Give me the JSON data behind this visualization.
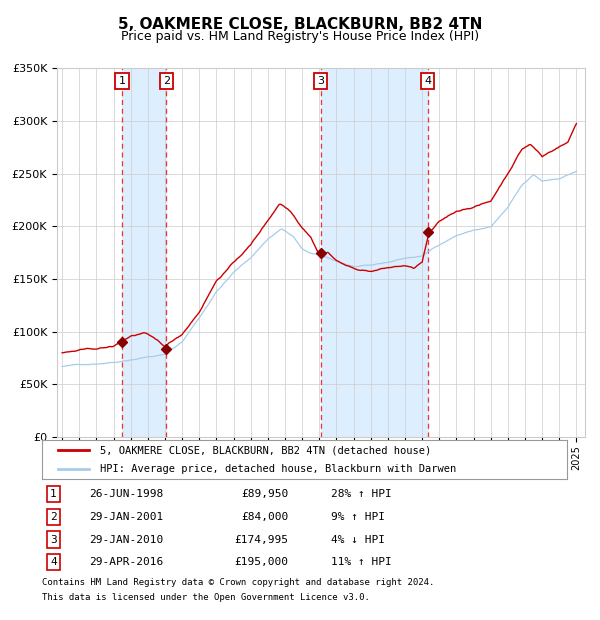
{
  "title": "5, OAKMERE CLOSE, BLACKBURN, BB2 4TN",
  "subtitle": "Price paid vs. HM Land Registry's House Price Index (HPI)",
  "sale_dates_decimal": [
    1998.4959,
    2001.0767,
    2010.0767,
    2016.3288
  ],
  "sale_prices": [
    89950,
    84000,
    174995,
    195000
  ],
  "sale_labels": [
    "1",
    "2",
    "3",
    "4"
  ],
  "sale_info": [
    {
      "label": "1",
      "date": "26-JUN-1998",
      "price": "£89,950",
      "hpi": "28% ↑ HPI"
    },
    {
      "label": "2",
      "date": "29-JAN-2001",
      "price": "£84,000",
      "hpi": "9% ↑ HPI"
    },
    {
      "label": "3",
      "date": "29-JAN-2010",
      "price": "£174,995",
      "hpi": "4% ↓ HPI"
    },
    {
      "label": "4",
      "date": "29-APR-2016",
      "price": "£195,000",
      "hpi": "11% ↑ HPI"
    }
  ],
  "legend_line1": "5, OAKMERE CLOSE, BLACKBURN, BB2 4TN (detached house)",
  "legend_line2": "HPI: Average price, detached house, Blackburn with Darwen",
  "footer1": "Contains HM Land Registry data © Crown copyright and database right 2024.",
  "footer2": "This data is licensed under the Open Government Licence v3.0.",
  "hpi_color": "#a8cce8",
  "price_color": "#cc0000",
  "sale_marker_color": "#880000",
  "dashed_line_color": "#ee3333",
  "shade_color": "#ddeeff",
  "ylim": [
    0,
    350000
  ],
  "yticks": [
    0,
    50000,
    100000,
    150000,
    200000,
    250000,
    300000,
    350000
  ],
  "xlim_start": 1994.7,
  "xlim_end": 2025.5,
  "background_color": "#ffffff",
  "grid_color": "#cccccc",
  "title_fontsize": 11,
  "subtitle_fontsize": 9
}
